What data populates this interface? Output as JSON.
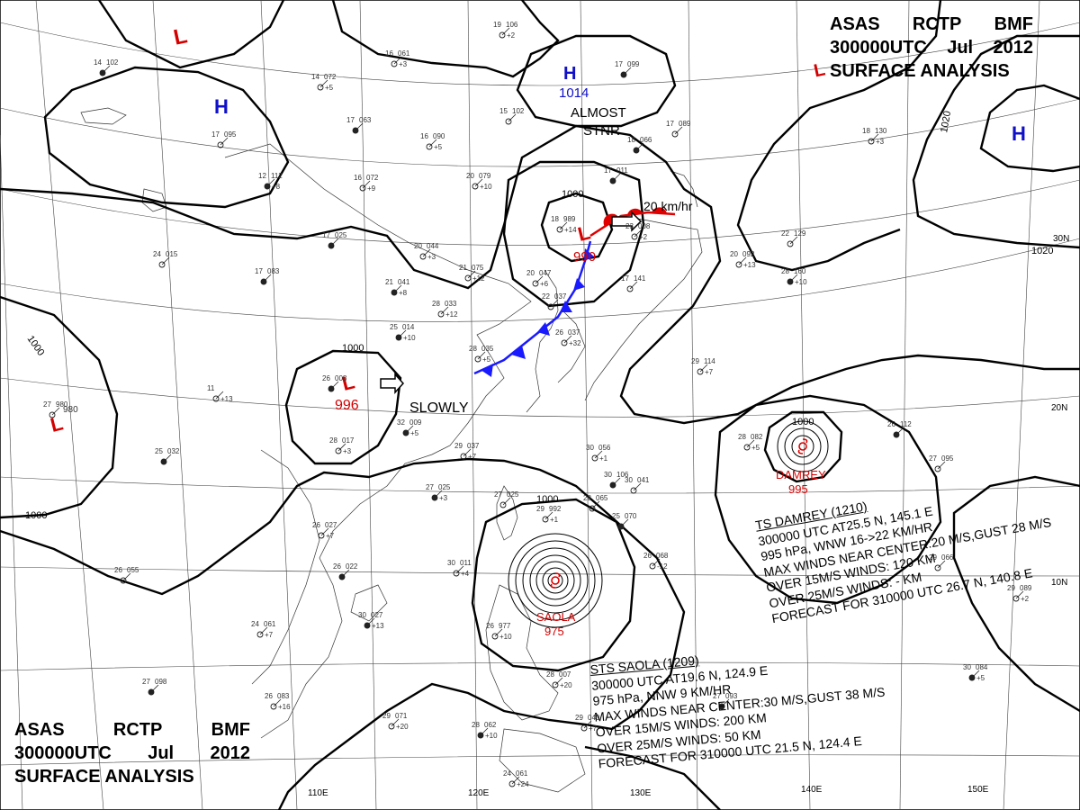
{
  "header": {
    "agency": [
      "ASAS",
      "RCTP",
      "BMF"
    ],
    "time": [
      "300000UTC",
      "Jul",
      "2012"
    ],
    "product": "SURFACE ANALYSIS"
  },
  "pressure_centers": [
    {
      "type": "L",
      "color": "#d40000"
    },
    {
      "type": "H",
      "color": "#1010c8"
    },
    {
      "type": "L",
      "color": "#d40000"
    },
    {
      "type": "H",
      "color": "#1010c8",
      "value": "1014"
    },
    {
      "type": "H",
      "color": "#1010c8"
    },
    {
      "type": "L",
      "color": "#d40000",
      "value": "990"
    },
    {
      "type": "L",
      "color": "#d40000",
      "value": "996"
    },
    {
      "type": "L",
      "color": "#d40000",
      "value": "980"
    }
  ],
  "movement_labels": {
    "almost": "ALMOST",
    "stnr": "STNR",
    "speed": "20 km/hr",
    "slowly": "SLOWLY"
  },
  "isobar_labels": [
    "1000",
    "1000",
    "1000",
    "1000",
    "1000",
    "1020",
    "1020",
    "1000",
    "1000"
  ],
  "typhoons": {
    "damrey": {
      "name": "DAMREY",
      "pressure": "995"
    },
    "saola": {
      "name": "SAOLA",
      "pressure": "975"
    }
  },
  "grid_labels": {
    "lon": [
      "110E",
      "120E",
      "130E",
      "140E",
      "150E"
    ],
    "lat": [
      "30N",
      "20N",
      "10N"
    ]
  },
  "storm_damrey_text": [
    "TS  DAMREY  (1210)",
    "300000 UTC  AT25.5 N, 145.1 E",
    "995 hPa, WNW  16->22 KM/HR",
    "MAX WINDS NEAR CENTER:20 M/S,GUST 28 M/S",
    "OVER 15M/S WINDS: 120 KM",
    "OVER 25M/S WINDS: - KM",
    "FORECAST FOR 310000 UTC 26.7 N, 140.8 E"
  ],
  "storm_saola_text": [
    "STS  SAOLA  (1209)",
    "300000 UTC   AT19.6 N, 124.9 E",
    "975 hPa, NNW  9 KM/HR",
    "MAX WINDS NEAR CENTER:30 M/S,GUST 38 M/S",
    "OVER 15M/S WINDS: 200 KM",
    "OVER 25M/S WINDS: 50 KM",
    "FORECAST FOR 310000 UTC 21.5 N, 124.4 E"
  ],
  "stations": [
    {
      "t": "14",
      "p": "102"
    },
    {
      "t": "16",
      "p": "061",
      "d": "+3"
    },
    {
      "t": "19",
      "p": "106",
      "d": "+2"
    },
    {
      "t": "17",
      "p": "099"
    },
    {
      "t": "14",
      "p": "072",
      "d": "+5"
    },
    {
      "t": "15",
      "p": "102"
    },
    {
      "t": "17",
      "p": "063"
    },
    {
      "t": "16",
      "p": "090",
      "d": "+5"
    },
    {
      "t": "17",
      "p": "095"
    },
    {
      "t": "18",
      "p": "066"
    },
    {
      "t": "17",
      "p": "089"
    },
    {
      "t": "18",
      "p": "130",
      "d": "+3"
    },
    {
      "t": "12",
      "p": "112",
      "d": "+8"
    },
    {
      "t": "16",
      "p": "072",
      "d": "+9"
    },
    {
      "t": "20",
      "p": "079",
      "d": "+10"
    },
    {
      "t": "17",
      "p": "011"
    },
    {
      "t": "18",
      "p": "989",
      "d": "+14"
    },
    {
      "t": "23",
      "p": "008",
      "d": "+2"
    },
    {
      "t": "17",
      "p": "025"
    },
    {
      "t": "20",
      "p": "044",
      "d": "+3"
    },
    {
      "t": "24",
      "p": "015"
    },
    {
      "t": "17",
      "p": "083"
    },
    {
      "t": "21",
      "p": "075",
      "d": "+12"
    },
    {
      "t": "20",
      "p": "047",
      "d": "+6"
    },
    {
      "t": "21",
      "p": "041",
      "d": "+8"
    },
    {
      "t": "28",
      "p": "033",
      "d": "+12"
    },
    {
      "t": "22",
      "p": "037"
    },
    {
      "t": "25",
      "p": "014",
      "d": "+10"
    },
    {
      "t": "26",
      "p": "037",
      "d": "+32"
    },
    {
      "t": "28",
      "p": "035",
      "d": "+5"
    },
    {
      "t": "26",
      "p": "008"
    },
    {
      "t": "11",
      "d": "+13"
    },
    {
      "t": "27",
      "p": "980"
    },
    {
      "t": "32",
      "p": "009",
      "d": "+5"
    },
    {
      "t": "28",
      "p": "017",
      "d": "+3"
    },
    {
      "t": "29",
      "p": "037",
      "d": "+7"
    },
    {
      "t": "25",
      "p": "032"
    },
    {
      "t": "30",
      "p": "056",
      "d": "+1"
    },
    {
      "t": "30",
      "p": "041"
    },
    {
      "t": "27",
      "p": "025",
      "d": "+3"
    },
    {
      "t": "27",
      "p": "025"
    },
    {
      "t": "29",
      "p": "992",
      "d": "+1"
    },
    {
      "t": "25",
      "p": "070"
    },
    {
      "t": "26",
      "p": "068",
      "d": "-12"
    },
    {
      "t": "26",
      "p": "027",
      "d": "+7"
    },
    {
      "t": "26",
      "p": "022"
    },
    {
      "t": "30",
      "p": "011",
      "d": "+4"
    },
    {
      "t": "24",
      "p": "061",
      "d": "+7"
    },
    {
      "t": "30",
      "p": "027",
      "d": "+13"
    },
    {
      "t": "26",
      "p": "977",
      "d": "+10"
    },
    {
      "t": "26",
      "p": "055"
    },
    {
      "t": "27",
      "p": "098"
    },
    {
      "t": "26",
      "p": "083",
      "d": "+16"
    },
    {
      "t": "29",
      "p": "071",
      "d": "+20"
    },
    {
      "t": "28",
      "p": "062",
      "d": "+10"
    },
    {
      "t": "24",
      "p": "061",
      "d": "+24"
    },
    {
      "t": "28",
      "p": "007",
      "d": "+20"
    },
    {
      "t": "26",
      "p": "112"
    },
    {
      "t": "28",
      "p": "082",
      "d": "+5"
    },
    {
      "t": "22",
      "p": "129"
    },
    {
      "t": "28",
      "p": "160",
      "d": "+10"
    },
    {
      "t": "20",
      "p": "092",
      "d": "+13"
    },
    {
      "t": "29",
      "p": "089",
      "d": "+2"
    },
    {
      "t": "30",
      "p": "084",
      "d": "+5"
    },
    {
      "t": "29",
      "p": "114",
      "d": "+7"
    },
    {
      "t": "27",
      "p": "095"
    },
    {
      "t": "27",
      "p": "093"
    },
    {
      "t": "29",
      "p": "040",
      "d": "+7"
    },
    {
      "t": "28",
      "p": "065"
    },
    {
      "t": "30",
      "p": "106"
    },
    {
      "t": "29",
      "p": "066"
    },
    {
      "t": "17",
      "p": "141"
    }
  ]
}
